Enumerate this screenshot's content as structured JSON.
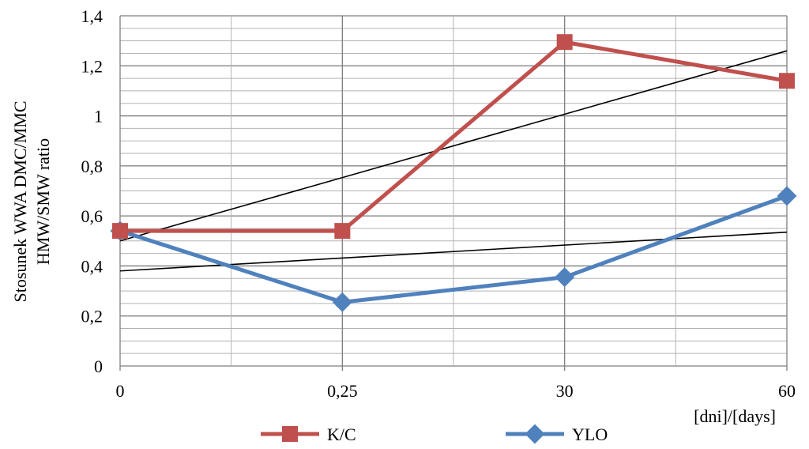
{
  "chart_data": {
    "type": "line",
    "categories": [
      "0",
      "0,25",
      "30",
      "60"
    ],
    "series": [
      {
        "name": "K/C",
        "values": [
          0.54,
          0.54,
          1.295,
          1.14
        ],
        "color": "#c0504d",
        "marker": "square"
      },
      {
        "name": "YLO",
        "values": [
          0.54,
          0.255,
          0.355,
          0.68
        ],
        "color": "#4f81bd",
        "marker": "diamond"
      }
    ],
    "trendlines": [
      {
        "series": "K/C",
        "start": 0.5,
        "end": 1.26,
        "color": "#000000"
      },
      {
        "series": "YLO",
        "start": 0.38,
        "end": 0.535,
        "color": "#000000"
      }
    ],
    "ylabel_lines": [
      "Stosunek WWA DMC/MMC",
      "HMW/SMW ratio"
    ],
    "xlabel": "[dni]/[days]",
    "ylim": [
      0,
      1.4
    ],
    "y_major_step": 0.2,
    "y_minor_step": 0.05,
    "y_tick_labels": [
      "0",
      "0,2",
      "0,4",
      "0,6",
      "0,8",
      "1",
      "1,2",
      "1,4"
    ],
    "grid": true,
    "legend_position": "bottom"
  }
}
